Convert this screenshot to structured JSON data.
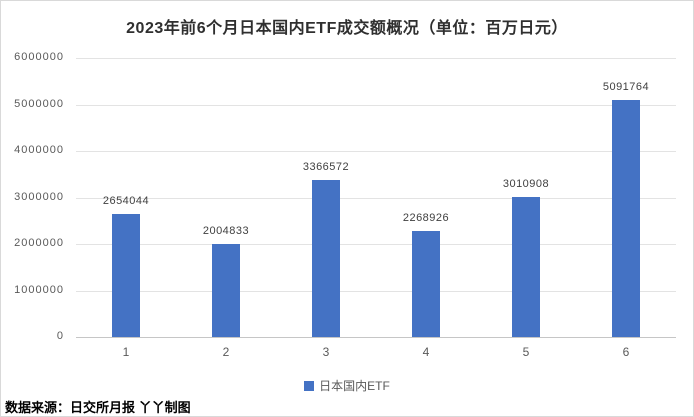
{
  "title": "2023年前6个月日本国内ETF成交额概况（单位：百万日元）",
  "source_note": "数据来源：日交所月报 丫丫制图",
  "legend": {
    "label": "日本国内ETF",
    "swatch_color": "#4472c4"
  },
  "colors": {
    "bar": "#4472c4",
    "gridline": "#e3e3e3",
    "axis_line": "#c6c6c6",
    "title_text": "#2f2f2f",
    "tick_text": "#595959",
    "value_label_text": "#404040"
  },
  "chart_data": {
    "type": "bar",
    "title": "2023年前6个月日本国内ETF成交额概况（单位：百万日元）",
    "categories": [
      "1",
      "2",
      "3",
      "4",
      "5",
      "6"
    ],
    "series": [
      {
        "name": "日本国内ETF",
        "values": [
          2654044,
          2004833,
          3366572,
          2268926,
          3010908,
          5091764
        ]
      }
    ],
    "data_labels": [
      "2654044",
      "2004833",
      "3366572",
      "2268926",
      "3010908",
      "5091764"
    ],
    "xlabel": "",
    "ylabel": "",
    "unit": "百万日元",
    "ylim": [
      0,
      6000000
    ],
    "y_ticks": [
      0,
      1000000,
      2000000,
      3000000,
      4000000,
      5000000,
      6000000
    ],
    "y_tick_labels": [
      "0",
      "1000000",
      "2000000",
      "3000000",
      "4000000",
      "5000000",
      "6000000"
    ],
    "grid": true,
    "legend_position": "bottom"
  }
}
